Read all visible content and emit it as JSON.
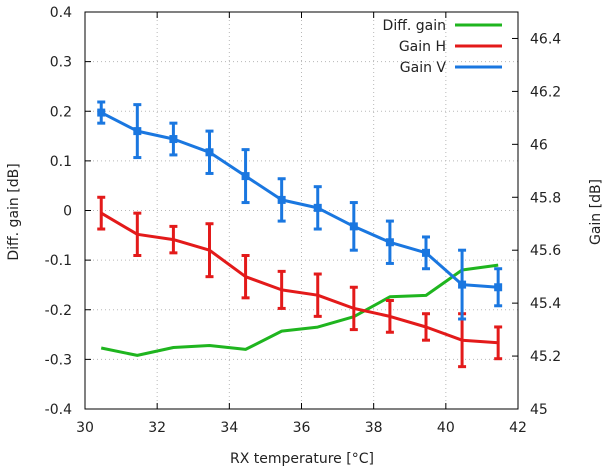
{
  "chart_data": {
    "type": "line",
    "title": "",
    "xlabel": "RX temperature [°C]",
    "ylabel_left": "Diff. gain [dB]",
    "ylabel_right": "Gain [dB]",
    "xlim": [
      30,
      42
    ],
    "ylim_left": [
      -0.4,
      0.4
    ],
    "ylim_right": [
      45,
      46.5
    ],
    "x_ticks": [
      "30",
      "32",
      "34",
      "36",
      "38",
      "40",
      "42"
    ],
    "y_left_ticks": [
      "0.4",
      "0.3",
      "0.2",
      "0.1",
      "0",
      "-0.1",
      "-0.2",
      "-0.3",
      "-0.4"
    ],
    "y_right_ticks": [
      "46.4",
      "46.2",
      "46",
      "45.8",
      "45.6",
      "45.4",
      "45.2",
      "45"
    ],
    "legend_position": "top-right",
    "grid": true,
    "series": [
      {
        "name": "Diff. gain",
        "axis": "left",
        "color": "#1fb51f",
        "error_bars": false,
        "x": [
          30.45,
          31.45,
          32.45,
          33.45,
          34.45,
          35.45,
          36.45,
          37.45,
          38.45,
          39.45,
          40.45,
          41.45
        ],
        "y": [
          -0.277,
          -0.292,
          -0.276,
          -0.272,
          -0.28,
          -0.243,
          -0.235,
          -0.214,
          -0.174,
          -0.171,
          -0.12,
          -0.11
        ]
      },
      {
        "name": "Gain H",
        "axis": "right",
        "color": "#e31a1a",
        "error_bars": true,
        "x": [
          30.45,
          31.45,
          32.45,
          33.45,
          34.45,
          35.45,
          36.45,
          37.45,
          38.45,
          39.45,
          40.45,
          41.45
        ],
        "y": [
          45.74,
          45.66,
          45.64,
          45.6,
          45.5,
          45.45,
          45.43,
          45.38,
          45.35,
          45.31,
          45.26,
          45.25
        ],
        "err": [
          0.06,
          0.08,
          0.05,
          0.1,
          0.08,
          0.07,
          0.08,
          0.08,
          0.06,
          0.05,
          0.1,
          0.06
        ]
      },
      {
        "name": "Gain V",
        "axis": "right",
        "color": "#1a77e0",
        "error_bars": true,
        "x": [
          30.45,
          31.45,
          32.45,
          33.45,
          34.45,
          35.45,
          36.45,
          37.45,
          38.45,
          39.45,
          40.45,
          41.45
        ],
        "y": [
          46.12,
          46.05,
          46.02,
          45.97,
          45.88,
          45.79,
          45.76,
          45.69,
          45.63,
          45.59,
          45.47,
          45.46
        ],
        "err": [
          0.04,
          0.1,
          0.06,
          0.08,
          0.1,
          0.08,
          0.08,
          0.09,
          0.08,
          0.06,
          0.13,
          0.07
        ]
      }
    ]
  }
}
